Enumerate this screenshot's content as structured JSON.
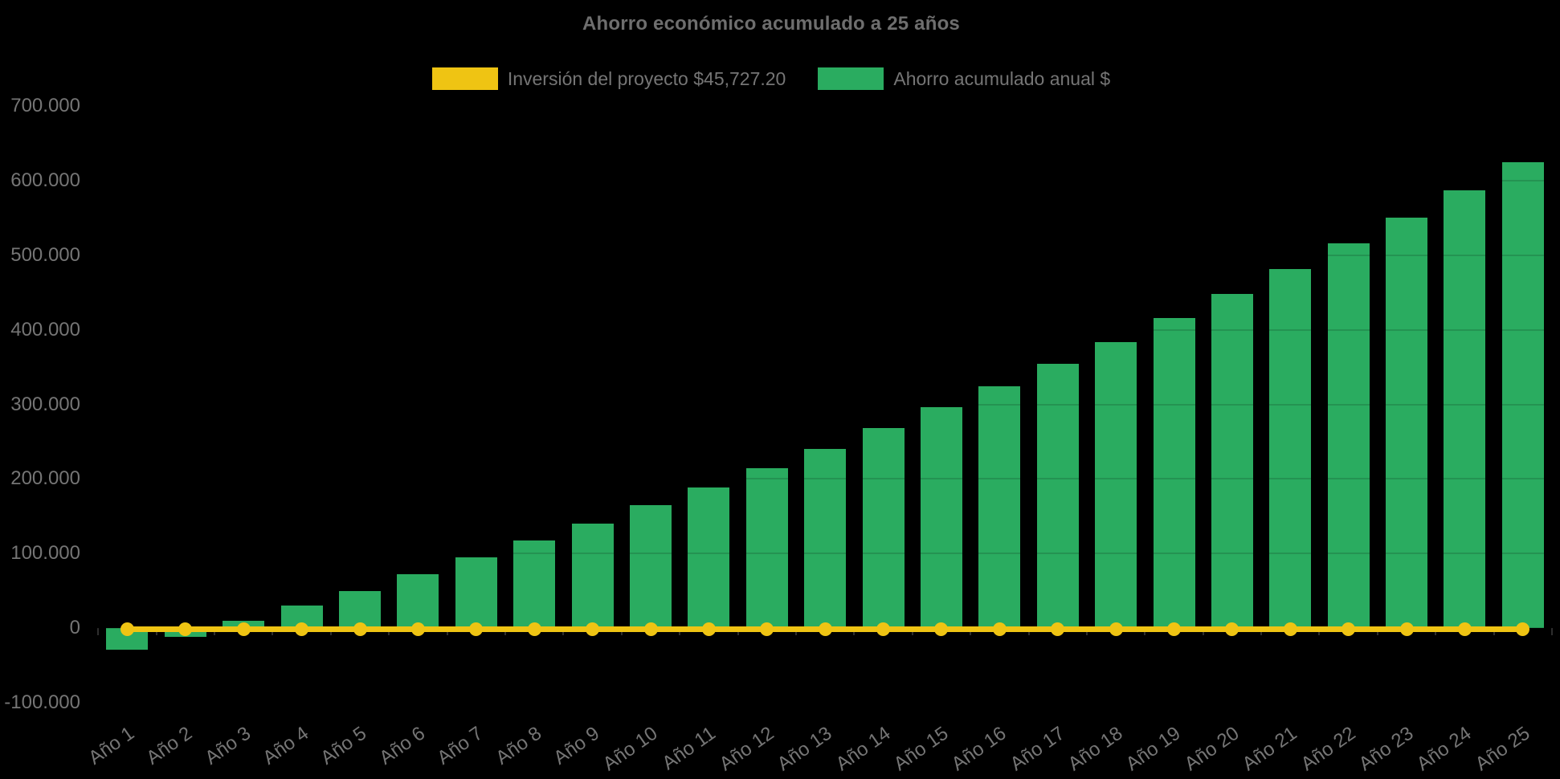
{
  "page": {
    "background": "#000000",
    "text_color": "#757575",
    "title_color": "#6e6e6e"
  },
  "chart_data": {
    "type": "bar",
    "title": "Ahorro económico acumulado a 25 años",
    "legend_position": "top",
    "grid": "faint horizontal gridlines, visible only across bars",
    "categories": [
      "Año 1",
      "Año 2",
      "Año 3",
      "Año 4",
      "Año 5",
      "Año 6",
      "Año 7",
      "Año 8",
      "Año 9",
      "Año 10",
      "Año 11",
      "Año 12",
      "Año 13",
      "Año 14",
      "Año 15",
      "Año 16",
      "Año 17",
      "Año 18",
      "Año 19",
      "Año 20",
      "Año 21",
      "Año 22",
      "Año 23",
      "Año 24",
      "Año 25"
    ],
    "bar_series": {
      "name": "Ahorro acumulado anual $",
      "color": "#2aac60",
      "values": [
        -29500,
        -12000,
        10000,
        30000,
        49500,
        72000,
        95000,
        117000,
        140500,
        164500,
        189000,
        214000,
        240500,
        268000,
        296500,
        324500,
        354000,
        384000,
        416000,
        448500,
        481500,
        516500,
        551000,
        587500,
        625500
      ]
    },
    "line_series": {
      "name": "Inversión del proyecto $45,727.20",
      "color": "#efc413",
      "plotted_value": 0,
      "marker": "circle",
      "markers_count": 25
    },
    "y_axis": {
      "min": -100000,
      "max": 700000,
      "tick_step": 100000,
      "tick_labels": [
        "700.000",
        "600.000",
        "500.000",
        "400.000",
        "300.000",
        "200.000",
        "100.000",
        "0",
        "-100.000"
      ]
    }
  }
}
